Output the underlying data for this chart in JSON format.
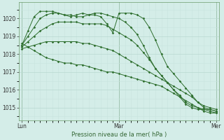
{
  "bg_color": "#d4ede8",
  "grid_color_major": "#b8d8d0",
  "grid_color_minor": "#c8e4de",
  "line_color": "#2d6e2d",
  "title": "Pression niveau de la mer( hPa )",
  "ylim": [
    1014.3,
    1020.9
  ],
  "yticks": [
    1015,
    1016,
    1017,
    1018,
    1019,
    1020
  ],
  "xtick_labels": [
    "Lun",
    "Mar",
    "Mer"
  ],
  "xtick_positions": [
    0,
    16,
    32
  ],
  "n_points": 33,
  "series": [
    [
      1018.5,
      1019.3,
      1020.1,
      1020.4,
      1020.4,
      1020.4,
      1020.3,
      1020.2,
      1020.1,
      1020.2,
      1020.3,
      1020.2,
      1020.2,
      1020.1,
      1019.7,
      1019.2,
      1020.3,
      1020.3,
      1020.3,
      1020.2,
      1020.0,
      1019.5,
      1018.8,
      1018.0,
      1017.3,
      1016.9,
      1016.5,
      1016.1,
      1015.7,
      1015.3,
      1015.0,
      1014.9,
      1014.8
    ],
    [
      1018.5,
      1019.0,
      1019.5,
      1020.0,
      1020.2,
      1020.3,
      1020.3,
      1020.2,
      1020.2,
      1020.1,
      1020.1,
      1020.2,
      1020.3,
      1020.3,
      1020.2,
      1020.1,
      1020.0,
      1019.8,
      1019.5,
      1019.1,
      1018.5,
      1017.8,
      1017.2,
      1016.8,
      1016.4,
      1016.0,
      1015.6,
      1015.2,
      1015.0,
      1014.9,
      1014.9,
      1014.9,
      1014.8
    ],
    [
      1018.4,
      1018.7,
      1019.0,
      1019.3,
      1019.5,
      1019.7,
      1019.8,
      1019.8,
      1019.8,
      1019.8,
      1019.7,
      1019.7,
      1019.7,
      1019.7,
      1019.6,
      1019.4,
      1019.2,
      1019.0,
      1018.8,
      1018.5,
      1018.1,
      1017.7,
      1017.2,
      1016.8,
      1016.4,
      1016.0,
      1015.7,
      1015.3,
      1015.1,
      1015.0,
      1014.9,
      1014.8,
      1014.7
    ],
    [
      1018.3,
      1018.4,
      1018.5,
      1018.6,
      1018.7,
      1018.7,
      1018.7,
      1018.7,
      1018.7,
      1018.7,
      1018.6,
      1018.6,
      1018.5,
      1018.4,
      1018.3,
      1018.2,
      1018.0,
      1017.8,
      1017.6,
      1017.4,
      1017.2,
      1017.0,
      1016.8,
      1016.6,
      1016.4,
      1016.2,
      1016.0,
      1015.8,
      1015.6,
      1015.3,
      1015.1,
      1015.0,
      1014.9
    ],
    [
      1018.6,
      1018.4,
      1018.2,
      1018.0,
      1017.8,
      1017.7,
      1017.6,
      1017.5,
      1017.5,
      1017.4,
      1017.4,
      1017.3,
      1017.2,
      1017.1,
      1017.0,
      1017.0,
      1016.9,
      1016.8,
      1016.7,
      1016.6,
      1016.5,
      1016.4,
      1016.3,
      1016.2,
      1016.0,
      1015.8,
      1015.6,
      1015.4,
      1015.2,
      1015.0,
      1014.8,
      1014.7,
      1014.7
    ]
  ]
}
